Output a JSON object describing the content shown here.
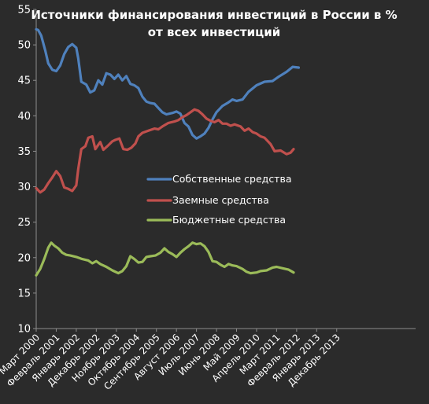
{
  "chart_data": {
    "type": "line",
    "title_lines": [
      "Источники финансирования инвестиций в России в %",
      "от всех инвестиций"
    ],
    "xlabel": "",
    "ylabel": "",
    "ylim": [
      10,
      55
    ],
    "yticks": [
      "10",
      "15",
      "20",
      "25",
      "30",
      "35",
      "40",
      "45",
      "50",
      "55"
    ],
    "x_tick_labels": [
      "Март 2000",
      "Февраль 2001",
      "Январь 2002",
      "Декабрь 2002",
      "Ноябрь 2003",
      "Октябрь 2004",
      "Сентябрь 2005",
      "Август 2006",
      "Июль 2007",
      "Июнь 2008",
      "Май 2009",
      "Апрель 2010",
      "Март 2011",
      "Февраль 2012",
      "Январь 2013",
      "Декабрь 2013"
    ],
    "x_range": [
      0,
      15.9
    ],
    "grid": false,
    "legend_position": "center",
    "colors": {
      "background": "#2b2b2b",
      "axis": "#8c8c8c",
      "text": "#ffffff"
    },
    "series": [
      {
        "name": "Собственные средства",
        "color": "#4f81bd",
        "points": [
          [
            0,
            52.2
          ],
          [
            0.1,
            52.1
          ],
          [
            0.25,
            51.3
          ],
          [
            0.45,
            49.2
          ],
          [
            0.6,
            47.4
          ],
          [
            0.8,
            46.5
          ],
          [
            1.0,
            46.3
          ],
          [
            1.2,
            47.1
          ],
          [
            1.4,
            48.7
          ],
          [
            1.6,
            49.7
          ],
          [
            1.8,
            50.1
          ],
          [
            2.0,
            49.6
          ],
          [
            2.1,
            48.1
          ],
          [
            2.25,
            44.8
          ],
          [
            2.5,
            44.4
          ],
          [
            2.7,
            43.3
          ],
          [
            2.9,
            43.6
          ],
          [
            3.1,
            45.0
          ],
          [
            3.3,
            44.4
          ],
          [
            3.5,
            46.0
          ],
          [
            3.7,
            45.8
          ],
          [
            3.9,
            45.2
          ],
          [
            4.1,
            45.8
          ],
          [
            4.3,
            45.0
          ],
          [
            4.5,
            45.6
          ],
          [
            4.7,
            44.5
          ],
          [
            4.9,
            44.3
          ],
          [
            5.1,
            43.9
          ],
          [
            5.3,
            42.7
          ],
          [
            5.5,
            42.0
          ],
          [
            5.7,
            41.8
          ],
          [
            5.9,
            41.7
          ],
          [
            6.1,
            41.1
          ],
          [
            6.3,
            40.5
          ],
          [
            6.5,
            40.2
          ],
          [
            6.8,
            40.4
          ],
          [
            7.0,
            40.6
          ],
          [
            7.2,
            40.3
          ],
          [
            7.4,
            39.0
          ],
          [
            7.6,
            38.5
          ],
          [
            7.8,
            37.3
          ],
          [
            8.0,
            36.8
          ],
          [
            8.2,
            37.1
          ],
          [
            8.4,
            37.5
          ],
          [
            8.6,
            38.3
          ],
          [
            8.8,
            39.5
          ],
          [
            9.0,
            40.5
          ],
          [
            9.3,
            41.4
          ],
          [
            9.6,
            41.9
          ],
          [
            9.8,
            42.3
          ],
          [
            10.0,
            42.1
          ],
          [
            10.3,
            42.3
          ],
          [
            10.6,
            43.4
          ],
          [
            11.0,
            44.3
          ],
          [
            11.4,
            44.8
          ],
          [
            11.8,
            44.9
          ],
          [
            12.1,
            45.5
          ],
          [
            12.5,
            46.2
          ],
          [
            12.8,
            46.9
          ],
          [
            13.1,
            46.8
          ]
        ]
      },
      {
        "name": "Заемные средства",
        "color": "#c0504d",
        "points": [
          [
            0,
            29.8
          ],
          [
            0.2,
            29.2
          ],
          [
            0.4,
            29.6
          ],
          [
            0.6,
            30.5
          ],
          [
            0.8,
            31.3
          ],
          [
            1.0,
            32.2
          ],
          [
            1.2,
            31.5
          ],
          [
            1.4,
            29.9
          ],
          [
            1.6,
            29.7
          ],
          [
            1.8,
            29.4
          ],
          [
            2.0,
            30.2
          ],
          [
            2.1,
            32.5
          ],
          [
            2.25,
            35.3
          ],
          [
            2.45,
            35.7
          ],
          [
            2.6,
            36.9
          ],
          [
            2.8,
            37.1
          ],
          [
            2.95,
            35.3
          ],
          [
            3.2,
            36.3
          ],
          [
            3.35,
            35.2
          ],
          [
            3.55,
            35.7
          ],
          [
            3.8,
            36.4
          ],
          [
            3.95,
            36.6
          ],
          [
            4.15,
            36.8
          ],
          [
            4.35,
            35.3
          ],
          [
            4.55,
            35.2
          ],
          [
            4.75,
            35.5
          ],
          [
            4.95,
            36.1
          ],
          [
            5.1,
            37.1
          ],
          [
            5.3,
            37.6
          ],
          [
            5.6,
            37.9
          ],
          [
            5.9,
            38.2
          ],
          [
            6.1,
            38.1
          ],
          [
            6.3,
            38.5
          ],
          [
            6.6,
            39.0
          ],
          [
            6.9,
            39.2
          ],
          [
            7.1,
            39.4
          ],
          [
            7.3,
            39.8
          ],
          [
            7.5,
            40.1
          ],
          [
            7.7,
            40.5
          ],
          [
            7.9,
            40.9
          ],
          [
            8.1,
            40.7
          ],
          [
            8.3,
            40.2
          ],
          [
            8.5,
            39.6
          ],
          [
            8.7,
            39.3
          ],
          [
            8.9,
            39.1
          ],
          [
            9.1,
            39.4
          ],
          [
            9.3,
            38.9
          ],
          [
            9.5,
            38.9
          ],
          [
            9.7,
            38.6
          ],
          [
            9.9,
            38.8
          ],
          [
            10.2,
            38.5
          ],
          [
            10.4,
            37.9
          ],
          [
            10.6,
            38.2
          ],
          [
            10.8,
            37.7
          ],
          [
            11.0,
            37.5
          ],
          [
            11.2,
            37.1
          ],
          [
            11.4,
            36.9
          ],
          [
            11.7,
            36.0
          ],
          [
            11.9,
            35.0
          ],
          [
            12.2,
            35.1
          ],
          [
            12.5,
            34.6
          ],
          [
            12.7,
            34.8
          ],
          [
            12.85,
            35.3
          ]
        ]
      },
      {
        "name": "Бюджетные средства",
        "color": "#9bbb59",
        "points": [
          [
            0,
            17.5
          ],
          [
            0.2,
            18.4
          ],
          [
            0.4,
            19.8
          ],
          [
            0.6,
            21.4
          ],
          [
            0.75,
            22.1
          ],
          [
            0.9,
            21.7
          ],
          [
            1.1,
            21.3
          ],
          [
            1.3,
            20.7
          ],
          [
            1.5,
            20.4
          ],
          [
            1.7,
            20.3
          ],
          [
            2.0,
            20.1
          ],
          [
            2.3,
            19.8
          ],
          [
            2.6,
            19.6
          ],
          [
            2.8,
            19.2
          ],
          [
            3.0,
            19.5
          ],
          [
            3.2,
            19.1
          ],
          [
            3.5,
            18.7
          ],
          [
            3.8,
            18.2
          ],
          [
            4.1,
            17.8
          ],
          [
            4.3,
            18.1
          ],
          [
            4.5,
            18.8
          ],
          [
            4.7,
            20.2
          ],
          [
            4.9,
            19.8
          ],
          [
            5.1,
            19.3
          ],
          [
            5.3,
            19.4
          ],
          [
            5.5,
            20.1
          ],
          [
            5.7,
            20.2
          ],
          [
            5.95,
            20.3
          ],
          [
            6.2,
            20.7
          ],
          [
            6.4,
            21.3
          ],
          [
            6.6,
            20.8
          ],
          [
            6.8,
            20.5
          ],
          [
            7.0,
            20.1
          ],
          [
            7.2,
            20.7
          ],
          [
            7.4,
            21.2
          ],
          [
            7.6,
            21.6
          ],
          [
            7.8,
            22.1
          ],
          [
            8.0,
            21.9
          ],
          [
            8.2,
            22.0
          ],
          [
            8.4,
            21.6
          ],
          [
            8.6,
            20.8
          ],
          [
            8.8,
            19.5
          ],
          [
            9.0,
            19.4
          ],
          [
            9.2,
            19.0
          ],
          [
            9.4,
            18.7
          ],
          [
            9.6,
            19.1
          ],
          [
            9.8,
            18.9
          ],
          [
            10.0,
            18.8
          ],
          [
            10.3,
            18.4
          ],
          [
            10.5,
            18.0
          ],
          [
            10.7,
            17.8
          ],
          [
            11.0,
            17.9
          ],
          [
            11.2,
            18.1
          ],
          [
            11.5,
            18.2
          ],
          [
            11.8,
            18.6
          ],
          [
            12.0,
            18.7
          ],
          [
            12.3,
            18.5
          ],
          [
            12.6,
            18.3
          ],
          [
            12.85,
            17.9
          ]
        ]
      }
    ]
  }
}
